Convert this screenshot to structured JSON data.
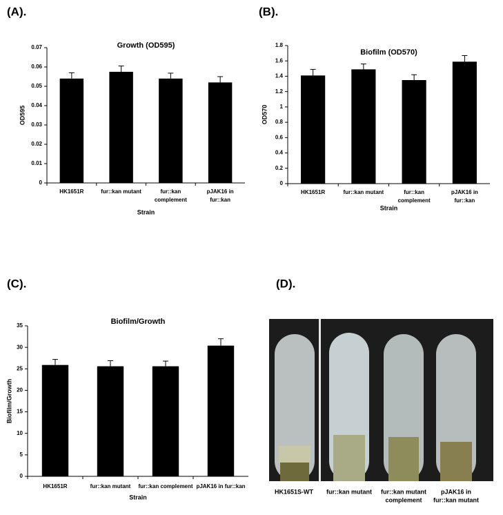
{
  "chart_data": [
    {
      "type": "bar",
      "panel_label": "(A).",
      "title": "Growth (OD595)",
      "y_label": "OD595",
      "x_label": "Strain",
      "categories": [
        [
          "HK1651R"
        ],
        [
          "fur::kan mutant"
        ],
        [
          "fur::kan",
          "complement"
        ],
        [
          "pJAK16 in",
          "fur::kan"
        ]
      ],
      "values": [
        0.054,
        0.0575,
        0.054,
        0.052
      ],
      "errors": [
        0.003,
        0.003,
        0.0028,
        0.003
      ],
      "color": "#000000",
      "ylim": [
        0,
        0.07
      ],
      "yticks": [
        0,
        0.01,
        0.02,
        0.03,
        0.04,
        0.05,
        0.06,
        0.07
      ]
    },
    {
      "type": "bar",
      "panel_label": "(B).",
      "title": "Biofilm (OD570)",
      "y_label": "OD570",
      "x_label": "Strain",
      "categories": [
        [
          "HK1651R"
        ],
        [
          "fur::kan mutant"
        ],
        [
          "fur::kan",
          "complement"
        ],
        [
          "pJAK16 in",
          "fur::kan"
        ]
      ],
      "values": [
        1.41,
        1.49,
        1.35,
        1.59
      ],
      "errors": [
        0.08,
        0.07,
        0.07,
        0.08
      ],
      "color": "#000000",
      "ylim": [
        0,
        1.8
      ],
      "yticks": [
        0,
        0.2,
        0.4,
        0.6,
        0.8,
        1,
        1.2,
        1.4,
        1.6,
        1.8
      ]
    },
    {
      "type": "bar",
      "panel_label": "(C).",
      "title": "Biofilm/Growth",
      "y_label": "Biofilm/Growth",
      "x_label": "Strain",
      "categories": [
        [
          "HK1651R"
        ],
        [
          "fur::kan mutant"
        ],
        [
          "fur::kan complement"
        ],
        [
          "pJAK16 in fur::kan"
        ]
      ],
      "values": [
        25.9,
        25.6,
        25.6,
        30.4
      ],
      "errors": [
        1.3,
        1.3,
        1.2,
        1.6
      ],
      "color": "#000000",
      "ylim": [
        0,
        35
      ],
      "yticks": [
        0,
        5,
        10,
        15,
        20,
        25,
        30,
        35
      ]
    }
  ],
  "photo": {
    "panel_label": "(D).",
    "captions": [
      [
        "HK1651S-WT"
      ],
      [
        "fur::kan  mutant"
      ],
      [
        "fur::kan mutant",
        "complement"
      ],
      [
        "pJAK16 in",
        "fur::kan mutant"
      ]
    ]
  }
}
